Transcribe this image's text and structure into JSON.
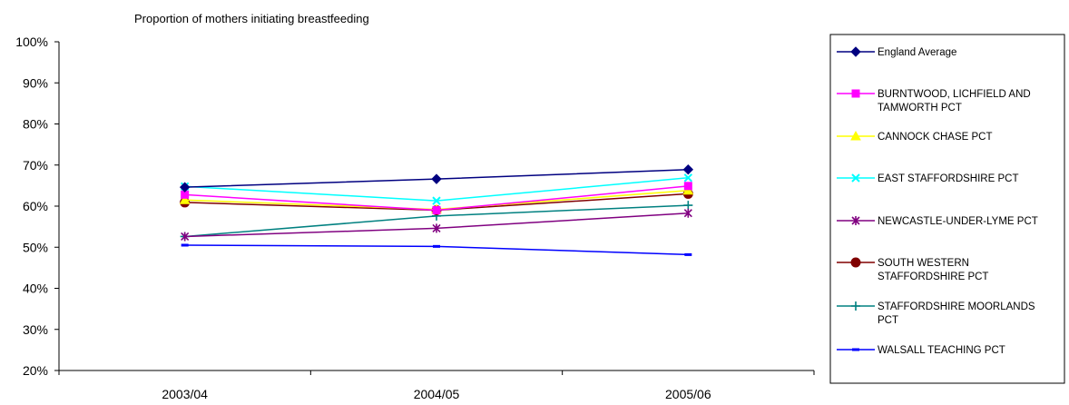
{
  "chart_data": {
    "type": "line",
    "title": "Proportion of mothers initiating breastfeeding",
    "xlabel": "",
    "ylabel": "",
    "categories": [
      "2003/04",
      "2004/05",
      "2005/06"
    ],
    "ylim": [
      20,
      100
    ],
    "yticks": [
      "20%",
      "30%",
      "40%",
      "50%",
      "60%",
      "70%",
      "80%",
      "90%",
      "100%"
    ],
    "ytick_values": [
      20,
      30,
      40,
      50,
      60,
      70,
      80,
      90,
      100
    ],
    "grid": false,
    "legend_position": "right",
    "series": [
      {
        "name": "England Average",
        "legend_lines": [
          "England Average"
        ],
        "values": [
          64.6,
          66.6,
          68.9
        ],
        "color": "#000080",
        "marker": "diamond"
      },
      {
        "name": "BURNTWOOD, LICHFIELD AND TAMWORTH PCT",
        "legend_lines": [
          "BURNTWOOD, LICHFIELD AND",
          "TAMWORTH PCT"
        ],
        "values": [
          62.8,
          59.0,
          64.9
        ],
        "color": "#FF00FF",
        "marker": "square"
      },
      {
        "name": "CANNOCK CHASE PCT",
        "legend_lines": [
          "CANNOCK CHASE PCT"
        ],
        "values": [
          61.5,
          59.2,
          63.8
        ],
        "color": "#FFFF00",
        "marker": "triangle"
      },
      {
        "name": "EAST STAFFORDSHIRE PCT",
        "legend_lines": [
          "EAST STAFFORDSHIRE PCT"
        ],
        "values": [
          64.8,
          61.3,
          66.9
        ],
        "color": "#00FFFF",
        "marker": "x"
      },
      {
        "name": "NEWCASTLE-UNDER-LYME PCT",
        "legend_lines": [
          "NEWCASTLE-UNDER-LYME PCT"
        ],
        "values": [
          52.6,
          54.6,
          58.3
        ],
        "color": "#800080",
        "marker": "asterisk"
      },
      {
        "name": "SOUTH WESTERN STAFFORDSHIRE PCT",
        "legend_lines": [
          "SOUTH WESTERN",
          "STAFFORDSHIRE PCT"
        ],
        "values": [
          60.9,
          59.0,
          63.0
        ],
        "color": "#800000",
        "marker": "circle"
      },
      {
        "name": "STAFFORDSHIRE MOORLANDS PCT",
        "legend_lines": [
          "STAFFORDSHIRE MOORLANDS",
          "PCT"
        ],
        "values": [
          52.6,
          57.6,
          60.2
        ],
        "color": "#008080",
        "marker": "plus"
      },
      {
        "name": "WALSALL TEACHING PCT",
        "legend_lines": [
          "WALSALL TEACHING PCT"
        ],
        "values": [
          50.5,
          50.2,
          48.2
        ],
        "color": "#0000FF",
        "marker": "dash"
      }
    ]
  }
}
